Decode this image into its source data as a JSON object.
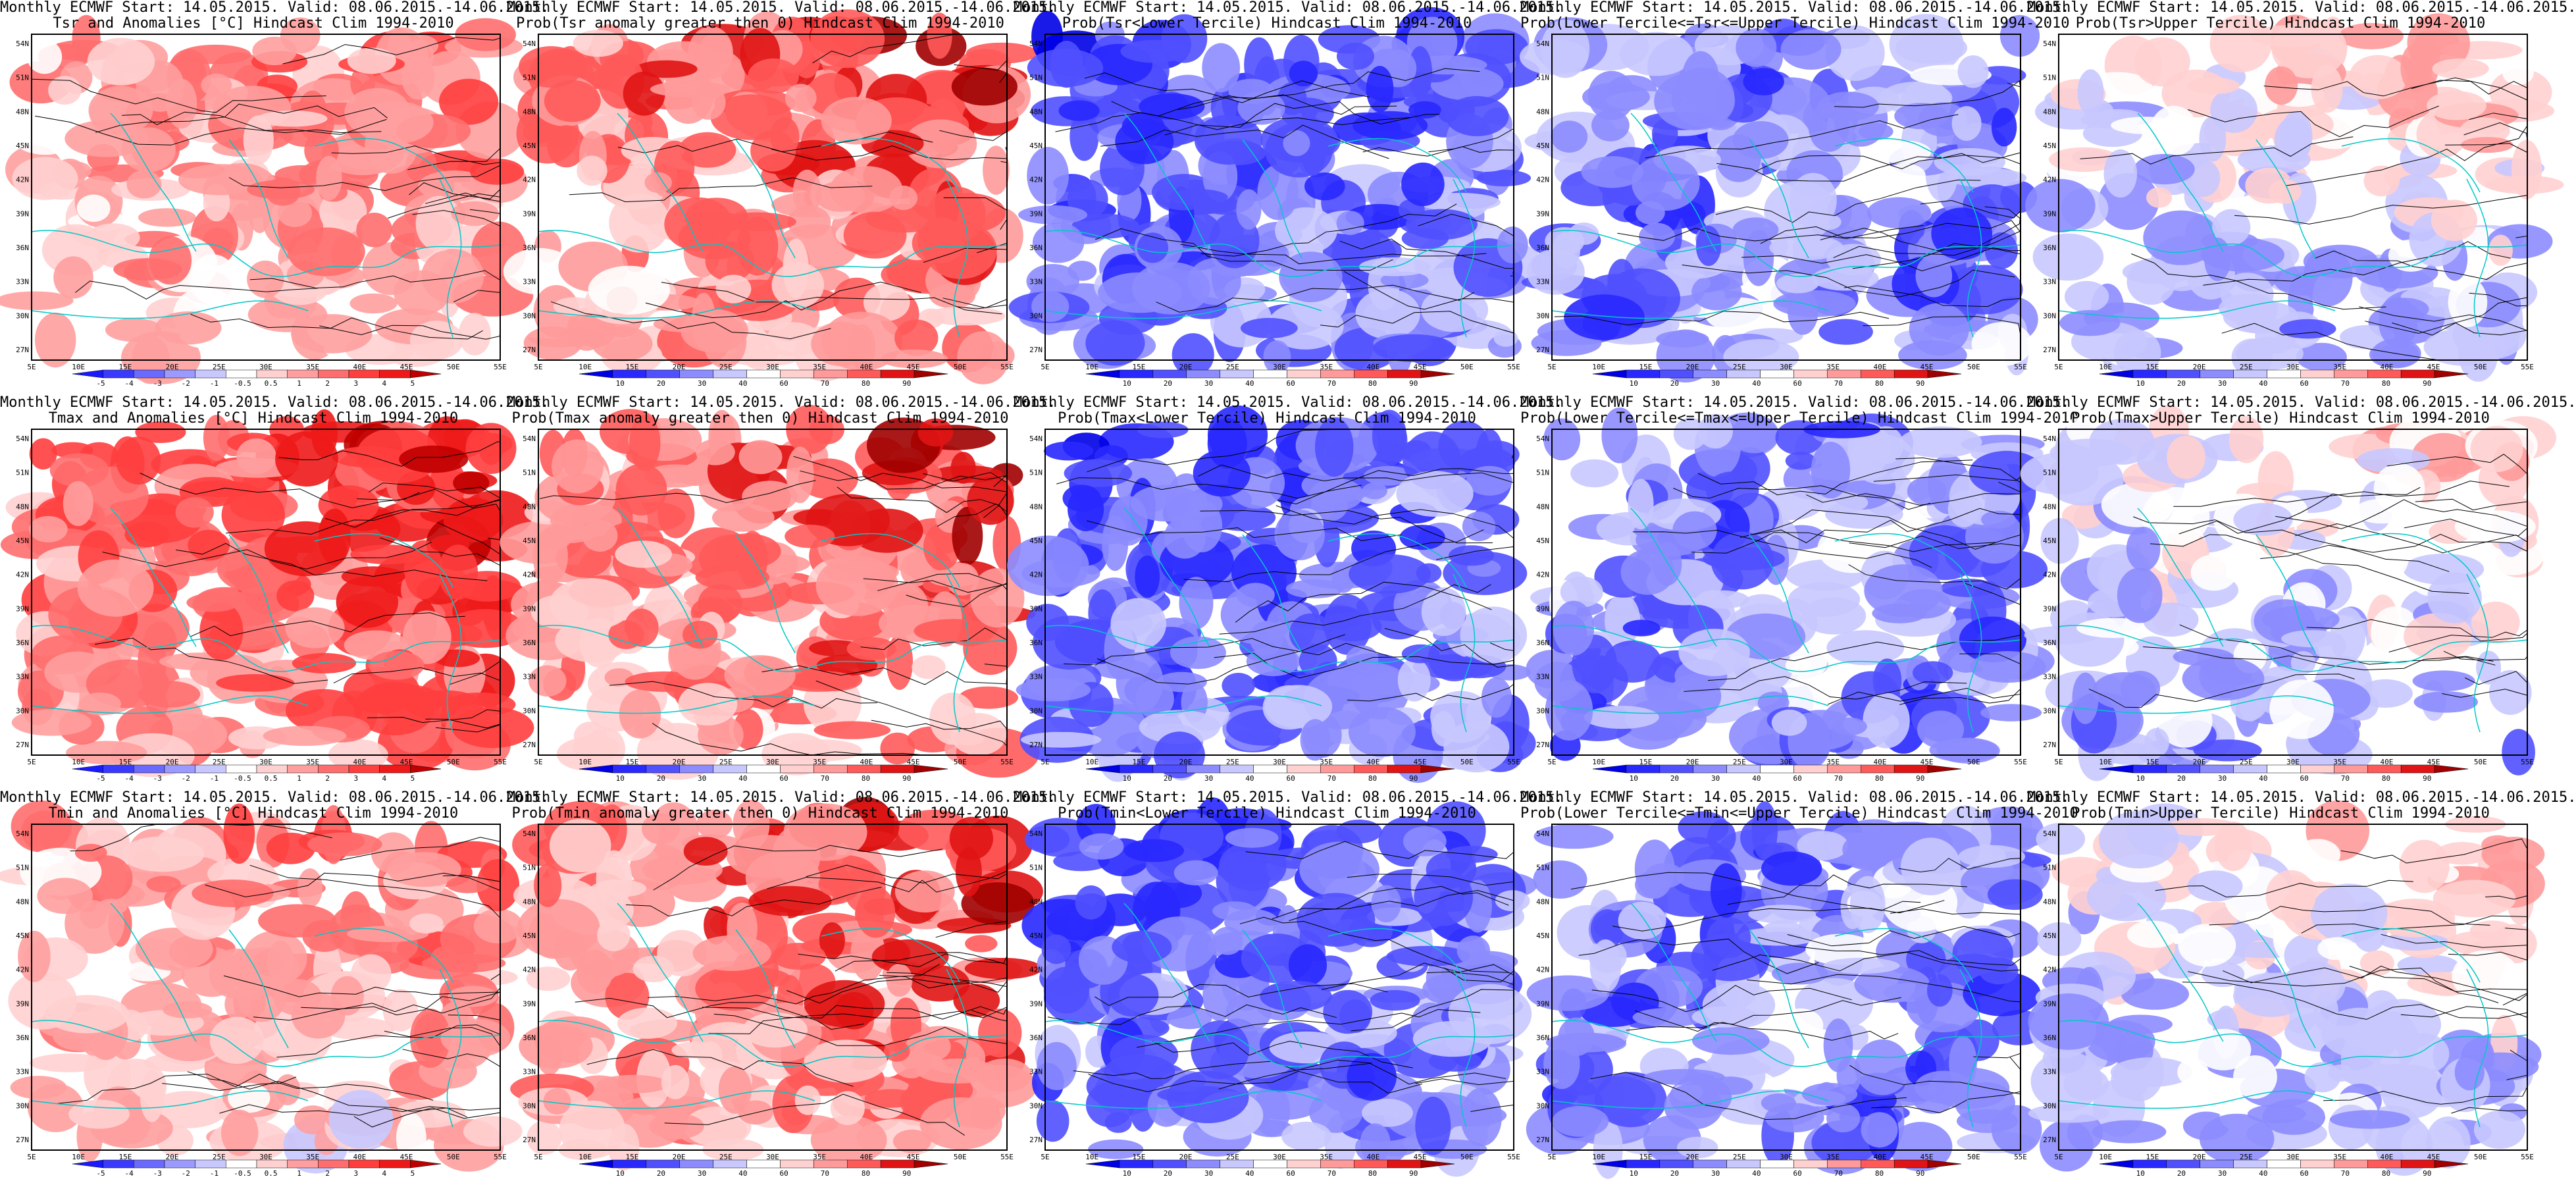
{
  "colors": {
    "anom": [
      "#1a1aff",
      "#3a3aff",
      "#6a6aff",
      "#9a9aff",
      "#c8c8ff",
      "#ffffff",
      "#ffd0d0",
      "#ff9e9e",
      "#ff6e6e",
      "#ff3e3e",
      "#ee1a1a",
      "#c00000"
    ],
    "prob": [
      "#0000e6",
      "#2828ff",
      "#5050ff",
      "#8c8cff",
      "#c8c8ff",
      "#ffffff",
      "#ffd0d0",
      "#ff9a9a",
      "#ff5a5a",
      "#e01414",
      "#a00000"
    ],
    "coast": "#00c8c8",
    "contour": "#000000"
  },
  "axes": {
    "lon_ticks": [
      "5E",
      "10E",
      "15E",
      "20E",
      "25E",
      "30E",
      "35E",
      "40E",
      "45E",
      "50E",
      "55E"
    ],
    "lat_ticks": [
      "27N",
      "30N",
      "33N",
      "36N",
      "39N",
      "42N",
      "45N",
      "48N",
      "51N",
      "54N"
    ]
  },
  "colorbars": {
    "anom_labels": [
      "-5",
      "-4",
      "-3",
      "-2",
      "-1",
      "-0.5",
      "0.5",
      "1",
      "2",
      "3",
      "4",
      "5"
    ],
    "prob_labels": [
      "10",
      "20",
      "30",
      "40",
      "60",
      "70",
      "80",
      "90"
    ]
  },
  "rows": [
    {
      "panels": [
        {
          "title1": "Monthly ECMWF Start: 14.05.2015. Valid: 08.06.2015.-14.06.2015.",
          "title2": "Tsr and Anomalies [°C] Hindcast Clim 1994-2010",
          "scale": "anom",
          "tone": "warm-mild"
        },
        {
          "title1": "Monthly ECMWF Start: 14.05.2015. Valid: 08.06.2015.-14.06.2015.",
          "title2": "Prob(Tsr anomaly greater then 0) Hindcast Clim 1994-2010",
          "scale": "prob",
          "tone": "warm"
        },
        {
          "title1": "Monthly ECMWF Start: 14.05.2015. Valid: 08.06.2015.-14.06.2015.",
          "title2": "Prob(Tsr<Lower Tercile) Hindcast Clim 1994-2010",
          "scale": "prob",
          "tone": "cold"
        },
        {
          "title1": "Monthly ECMWF Start: 14.05.2015. Valid: 08.06.2015.-14.06.2015.",
          "title2": "Prob(Lower Tercile<=Tsr<=Upper Tercile) Hindcast Clim 1994-2010",
          "scale": "prob",
          "tone": "cool"
        },
        {
          "title1": "Monthly ECMWF Start: 14.05.2015. Valid: 08.06.2015.-14.06.2015.",
          "title2": "Prob(Tsr>Upper Tercile) Hindcast Clim 1994-2010",
          "scale": "prob",
          "tone": "mixed"
        }
      ]
    },
    {
      "panels": [
        {
          "title1": "Monthly ECMWF Start: 14.05.2015. Valid: 08.06.2015.-14.06.2015.",
          "title2": "Tmax and Anomalies [°C] Hindcast Clim 1994-2010",
          "scale": "anom",
          "tone": "warm"
        },
        {
          "title1": "Monthly ECMWF Start: 14.05.2015. Valid: 08.06.2015.-14.06.2015.",
          "title2": "Prob(Tmax anomaly greater then 0) Hindcast Clim 1994-2010",
          "scale": "prob",
          "tone": "warm"
        },
        {
          "title1": "Monthly ECMWF Start: 14.05.2015. Valid: 08.06.2015.-14.06.2015.",
          "title2": "Prob(Tmax<Lower Tercile) Hindcast Clim 1994-2010",
          "scale": "prob",
          "tone": "cold"
        },
        {
          "title1": "Monthly ECMWF Start: 14.05.2015. Valid: 08.06.2015.-14.06.2015.",
          "title2": "Prob(Lower Tercile<=Tmax<=Upper Tercile) Hindcast Clim 1994-2010",
          "scale": "prob",
          "tone": "cool"
        },
        {
          "title1": "Monthly ECMWF Start: 14.05.2015. Valid: 08.06.2015.-14.06.2015.",
          "title2": "Prob(Tmax>Upper Tercile) Hindcast Clim 1994-2010",
          "scale": "prob",
          "tone": "mixed"
        }
      ]
    },
    {
      "panels": [
        {
          "title1": "Monthly ECMWF Start: 14.05.2015. Valid: 08.06.2015.-14.06.2015.",
          "title2": "Tmin and Anomalies [°C] Hindcast Clim 1994-2010",
          "scale": "anom",
          "tone": "warm-mild"
        },
        {
          "title1": "Monthly ECMWF Start: 14.05.2015. Valid: 08.06.2015.-14.06.2015.",
          "title2": "Prob(Tmin anomaly greater then 0) Hindcast Clim 1994-2010",
          "scale": "prob",
          "tone": "warm"
        },
        {
          "title1": "Monthly ECMWF Start: 14.05.2015. Valid: 08.06.2015.-14.06.2015.",
          "title2": "Prob(Tmin<Lower Tercile) Hindcast Clim 1994-2010",
          "scale": "prob",
          "tone": "cold"
        },
        {
          "title1": "Monthly ECMWF Start: 14.05.2015. Valid: 08.06.2015.-14.06.2015.",
          "title2": "Prob(Lower Tercile<=Tmin<=Upper Tercile) Hindcast Clim 1994-2010",
          "scale": "prob",
          "tone": "cool"
        },
        {
          "title1": "Monthly ECMWF Start: 14.05.2015. Valid: 08.06.2015.-14.06.2015.",
          "title2": "Prob(Tmin>Upper Tercile) Hindcast Clim 1994-2010",
          "scale": "prob",
          "tone": "mixed"
        }
      ]
    }
  ]
}
